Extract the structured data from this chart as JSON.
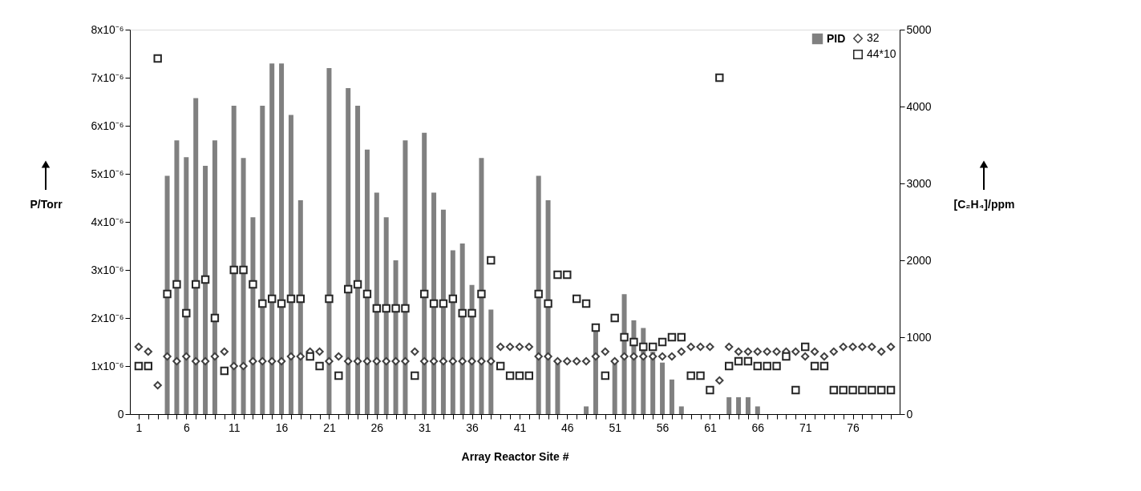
{
  "chart_data": {
    "type": "bar",
    "xlabel": "Array Reactor Site #",
    "ylabel": "P/Torr",
    "y2label": "[C₂H₄]/ppm",
    "x": [
      1,
      2,
      3,
      4,
      5,
      6,
      7,
      8,
      9,
      10,
      11,
      12,
      13,
      14,
      15,
      16,
      17,
      18,
      19,
      20,
      21,
      22,
      23,
      24,
      25,
      26,
      27,
      28,
      29,
      30,
      31,
      32,
      33,
      34,
      35,
      36,
      37,
      38,
      39,
      40,
      41,
      42,
      43,
      44,
      45,
      46,
      47,
      48,
      49,
      50,
      51,
      52,
      53,
      54,
      55,
      56,
      57,
      58,
      59,
      60,
      61,
      62,
      63,
      64,
      65,
      66,
      67,
      68,
      69,
      70,
      71,
      72,
      73,
      74,
      75,
      76,
      77,
      78,
      79,
      80
    ],
    "xlim": [
      0.5,
      80.5
    ],
    "xticks": [
      1,
      {
        "value": 2,
        "label": null
      },
      {
        "value": 3,
        "label": null
      },
      {
        "value": 4,
        "label": null
      },
      {
        "value": 5,
        "label": null
      },
      6,
      {
        "value": 7,
        "label": null
      },
      {
        "value": 8,
        "label": null
      },
      {
        "value": 9,
        "label": null
      },
      {
        "value": 10,
        "label": null
      },
      11,
      {
        "value": 12,
        "label": null
      },
      {
        "value": 13,
        "label": null
      },
      {
        "value": 14,
        "label": null
      },
      {
        "value": 15,
        "label": null
      },
      16,
      {
        "value": 17,
        "label": null
      },
      {
        "value": 18,
        "label": null
      },
      {
        "value": 19,
        "label": null
      },
      {
        "value": 20,
        "label": null
      },
      21,
      {
        "value": 22,
        "label": null
      },
      {
        "value": 23,
        "label": null
      },
      {
        "value": 24,
        "label": null
      },
      {
        "value": 25,
        "label": null
      },
      26,
      {
        "value": 27,
        "label": null
      },
      {
        "value": 28,
        "label": null
      },
      {
        "value": 29,
        "label": null
      },
      {
        "value": 30,
        "label": null
      },
      31,
      {
        "value": 32,
        "label": null
      },
      {
        "value": 33,
        "label": null
      },
      {
        "value": 34,
        "label": null
      },
      {
        "value": 35,
        "label": null
      },
      36,
      {
        "value": 37,
        "label": null
      },
      {
        "value": 38,
        "label": null
      },
      {
        "value": 39,
        "label": null
      },
      {
        "value": 40,
        "label": null
      },
      41,
      {
        "value": 42,
        "label": null
      },
      {
        "value": 43,
        "label": null
      },
      {
        "value": 44,
        "label": null
      },
      {
        "value": 45,
        "label": null
      },
      46,
      {
        "value": 47,
        "label": null
      },
      {
        "value": 48,
        "label": null
      },
      {
        "value": 49,
        "label": null
      },
      {
        "value": 50,
        "label": null
      },
      51,
      {
        "value": 52,
        "label": null
      },
      {
        "value": 53,
        "label": null
      },
      {
        "value": 54,
        "label": null
      },
      {
        "value": 55,
        "label": null
      },
      56,
      {
        "value": 57,
        "label": null
      },
      {
        "value": 58,
        "label": null
      },
      {
        "value": 59,
        "label": null
      },
      {
        "value": 60,
        "label": null
      },
      61,
      {
        "value": 62,
        "label": null
      },
      {
        "value": 63,
        "label": null
      },
      {
        "value": 64,
        "label": null
      },
      {
        "value": 65,
        "label": null
      },
      66,
      {
        "value": 67,
        "label": null
      },
      {
        "value": 68,
        "label": null
      },
      {
        "value": 69,
        "label": null
      },
      {
        "value": 70,
        "label": null
      },
      71,
      {
        "value": 72,
        "label": null
      },
      {
        "value": 73,
        "label": null
      },
      {
        "value": 74,
        "label": null
      },
      {
        "value": 75,
        "label": null
      },
      76,
      {
        "value": 77,
        "label": null
      },
      {
        "value": 78,
        "label": null
      },
      {
        "value": 79,
        "label": null
      },
      {
        "value": 80,
        "label": null
      }
    ],
    "ylim": [
      0,
      8e-06
    ],
    "yticks": [
      0,
      {
        "value": 1e-06,
        "label": "1x10⁻⁶"
      },
      {
        "value": 2e-06,
        "label": "2x10⁻⁶"
      },
      {
        "value": 3e-06,
        "label": "3x10⁻⁶"
      },
      {
        "value": 4e-06,
        "label": "4x10⁻⁶"
      },
      {
        "value": 5e-06,
        "label": "5x10⁻⁶"
      },
      {
        "value": 6e-06,
        "label": "6x10⁻⁶"
      },
      {
        "value": 7e-06,
        "label": "7x10⁻⁶"
      },
      {
        "value": 8e-06,
        "label": "8x10⁻⁶"
      }
    ],
    "y2lim": [
      0,
      5000
    ],
    "y2ticks": [
      0,
      1000,
      2000,
      3000,
      4000,
      5000
    ],
    "legend": "top right",
    "series": [
      {
        "name": "PID",
        "axis": "y2",
        "color": "#808080",
        "values": [
          null,
          null,
          null,
          3100,
          3560,
          3340,
          4110,
          3230,
          3560,
          null,
          4010,
          3330,
          2560,
          4010,
          4560,
          4560,
          3890,
          2780,
          null,
          null,
          4500,
          null,
          4240,
          4010,
          3440,
          2880,
          2560,
          2000,
          3560,
          null,
          3660,
          2880,
          2660,
          2130,
          2220,
          1680,
          3330,
          1360,
          null,
          null,
          null,
          null,
          3100,
          2780,
          660,
          null,
          null,
          100,
          1080,
          null,
          700,
          1560,
          1220,
          1120,
          810,
          670,
          450,
          100,
          null,
          null,
          null,
          null,
          220,
          220,
          220,
          100,
          null,
          null,
          null,
          null,
          null,
          null,
          null,
          null,
          null,
          null,
          null,
          null,
          null,
          null
        ]
      },
      {
        "name": "32",
        "type": "scatter",
        "marker": "diamond",
        "color": "#404040",
        "values": [
          1.4e-06,
          1.3e-06,
          6e-07,
          1.2e-06,
          1.1e-06,
          1.2e-06,
          1.1e-06,
          1.1e-06,
          1.2e-06,
          1.3e-06,
          1e-06,
          1e-06,
          1.1e-06,
          1.1e-06,
          1.1e-06,
          1.1e-06,
          1.2e-06,
          1.2e-06,
          1.3e-06,
          1.3e-06,
          1.1e-06,
          1.2e-06,
          1.1e-06,
          1.1e-06,
          1.1e-06,
          1.1e-06,
          1.1e-06,
          1.1e-06,
          1.1e-06,
          1.3e-06,
          1.1e-06,
          1.1e-06,
          1.1e-06,
          1.1e-06,
          1.1e-06,
          1.1e-06,
          1.1e-06,
          1.1e-06,
          1.4e-06,
          1.4e-06,
          1.4e-06,
          1.4e-06,
          1.2e-06,
          1.2e-06,
          1.1e-06,
          1.1e-06,
          1.1e-06,
          1.1e-06,
          1.2e-06,
          1.3e-06,
          1.1e-06,
          1.2e-06,
          1.2e-06,
          1.2e-06,
          1.2e-06,
          1.2e-06,
          1.2e-06,
          1.3e-06,
          1.4e-06,
          1.4e-06,
          1.4e-06,
          7e-07,
          1.4e-06,
          1.3e-06,
          1.3e-06,
          1.3e-06,
          1.3e-06,
          1.3e-06,
          1.3e-06,
          1.3e-06,
          1.2e-06,
          1.3e-06,
          1.2e-06,
          1.3e-06,
          1.4e-06,
          1.4e-06,
          1.4e-06,
          1.4e-06,
          1.3e-06,
          1.4e-06
        ]
      },
      {
        "name": "44*10",
        "type": "scatter",
        "marker": "square",
        "color": "#262626",
        "values": [
          1e-06,
          1e-06,
          7.4e-06,
          2.5e-06,
          2.7e-06,
          2.1e-06,
          2.7e-06,
          2.8e-06,
          2e-06,
          9e-07,
          3e-06,
          3e-06,
          2.7e-06,
          2.3e-06,
          2.4e-06,
          2.3e-06,
          2.4e-06,
          2.4e-06,
          1.2e-06,
          1e-06,
          2.4e-06,
          8e-07,
          2.6e-06,
          2.7e-06,
          2.5e-06,
          2.2e-06,
          2.2e-06,
          2.2e-06,
          2.2e-06,
          8e-07,
          2.5e-06,
          2.3e-06,
          2.3e-06,
          2.4e-06,
          2.1e-06,
          2.1e-06,
          2.5e-06,
          3.2e-06,
          1e-06,
          8e-07,
          8e-07,
          8e-07,
          2.5e-06,
          2.3e-06,
          2.9e-06,
          2.9e-06,
          2.4e-06,
          2.3e-06,
          1.8e-06,
          8e-07,
          2e-06,
          1.6e-06,
          1.5e-06,
          1.4e-06,
          1.4e-06,
          1.5e-06,
          1.6e-06,
          1.6e-06,
          8e-07,
          8e-07,
          5e-07,
          7e-06,
          1e-06,
          1.1e-06,
          1.1e-06,
          1e-06,
          1e-06,
          1e-06,
          1.2e-06,
          5e-07,
          1.4e-06,
          1e-06,
          1e-06,
          5e-07,
          5e-07,
          5e-07,
          5e-07,
          5e-07,
          5e-07,
          5e-07
        ]
      }
    ]
  }
}
